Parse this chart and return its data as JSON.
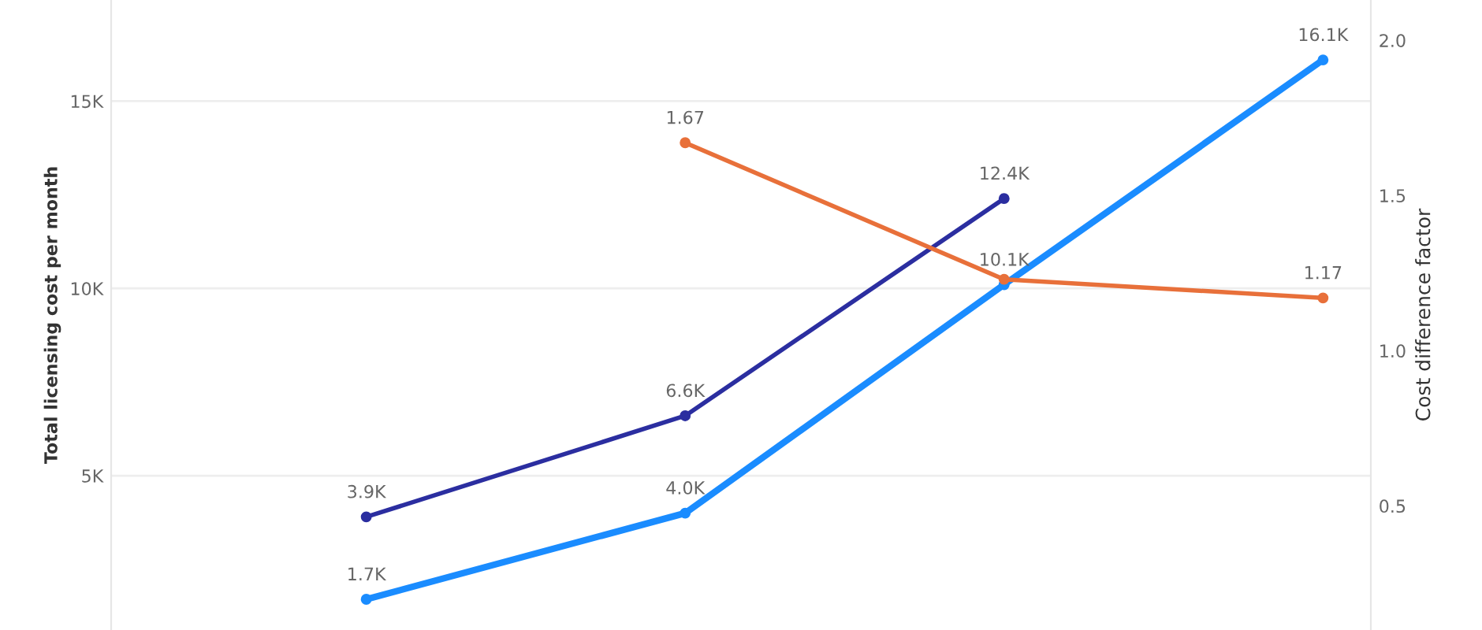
{
  "chart_data": {
    "type": "line",
    "ylabel": "Total licensing cost per month",
    "y2label": "Cost difference factor",
    "categories": [
      null,
      null,
      null,
      null
    ],
    "series": [
      {
        "color": "#2b2ea0",
        "values": [
          3900,
          6600,
          12400,
          null
        ],
        "value_labels": [
          "3.9K",
          "6.6K",
          "12.4K",
          null
        ]
      },
      {
        "color": "#1a8cff",
        "values": [
          1700,
          4000,
          10100,
          16100
        ],
        "value_labels": [
          "1.7K",
          "4.0K",
          "10.1K",
          "16.1K"
        ]
      },
      {
        "color": "#e8703a",
        "axis": "y2",
        "values": [
          null,
          1.67,
          1.23,
          1.17
        ],
        "value_labels": [
          null,
          "1.67",
          null,
          "1.17"
        ]
      }
    ],
    "ylim": [
      880,
      17700
    ],
    "yticks": [
      {
        "value": 5000,
        "label": "5K"
      },
      {
        "value": 10000,
        "label": "10K"
      },
      {
        "value": 15000,
        "label": "15K"
      }
    ],
    "y2lim": [
      0.1,
      2.13
    ],
    "y2ticks": [
      0.5,
      {
        "value": 1.0,
        "label": "1.0"
      },
      1.5,
      {
        "value": 2.0,
        "label": "2.0"
      }
    ],
    "grid": "y",
    "marker": "circle",
    "line_style": "solid",
    "tick_labels": "y"
  }
}
